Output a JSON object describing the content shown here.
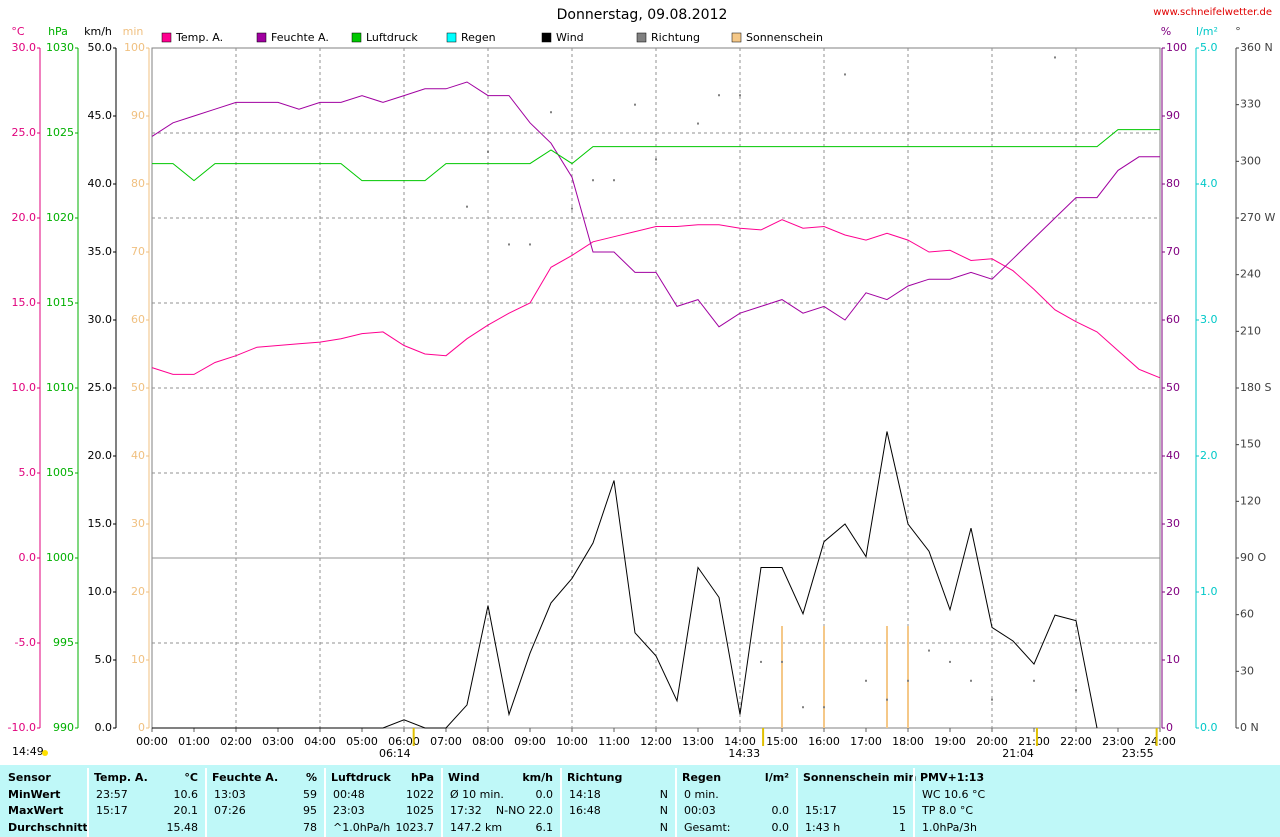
{
  "chart_data": {
    "type": "line",
    "title": "Donnerstag, 09.08.2012",
    "source": "www.schneifelwetter.de",
    "updated": "14:49",
    "x": [
      0,
      0.5,
      1,
      1.5,
      2,
      2.5,
      3,
      3.5,
      4,
      4.5,
      5,
      5.5,
      6,
      6.5,
      7,
      7.5,
      8,
      8.5,
      9,
      9.5,
      10,
      10.5,
      11,
      11.5,
      12,
      12.5,
      13,
      13.5,
      14,
      14.5,
      15,
      15.5,
      16,
      16.5,
      17,
      17.5,
      18,
      18.5,
      19,
      19.5,
      20,
      20.5,
      21,
      21.5,
      22,
      22.5,
      23,
      23.5,
      24
    ],
    "xlim": [
      0,
      24
    ],
    "xticks": [
      {
        "value": 0,
        "label": "00:00"
      },
      {
        "value": 1,
        "label": "01:00"
      },
      {
        "value": 2,
        "label": "02:00"
      },
      {
        "value": 3,
        "label": "03:00"
      },
      {
        "value": 4,
        "label": "04:00"
      },
      {
        "value": 5,
        "label": "05:00"
      },
      {
        "value": 6,
        "label": "06:00"
      },
      {
        "value": 7,
        "label": "07:00"
      },
      {
        "value": 8,
        "label": "08:00"
      },
      {
        "value": 9,
        "label": "09:00"
      },
      {
        "value": 10,
        "label": "10:00"
      },
      {
        "value": 11,
        "label": "11:00"
      },
      {
        "value": 12,
        "label": "12:00"
      },
      {
        "value": 13,
        "label": "13:00"
      },
      {
        "value": 14,
        "label": "14:00"
      },
      {
        "value": 15,
        "label": "15:00"
      },
      {
        "value": 16,
        "label": "16:00"
      },
      {
        "value": 17,
        "label": "17:00"
      },
      {
        "value": 18,
        "label": "18:00"
      },
      {
        "value": 19,
        "label": "19:00"
      },
      {
        "value": 20,
        "label": "20:00"
      },
      {
        "value": 21,
        "label": "21:00"
      },
      {
        "value": 22,
        "label": "22:00"
      },
      {
        "value": 23,
        "label": "23:00"
      },
      {
        "value": 24,
        "label": "24:00"
      }
    ],
    "grid": true,
    "axes": [
      {
        "label": "°C",
        "color": "#e0007c",
        "lim": [
          -10,
          30
        ],
        "ticks": [
          {
            "value": -10,
            "label": "-10.0"
          },
          {
            "value": -5,
            "label": "-5.0"
          },
          {
            "value": 0,
            "label": "0.0"
          },
          {
            "value": 5,
            "label": "5.0"
          },
          {
            "value": 10,
            "label": "10.0"
          },
          {
            "value": 15,
            "label": "15.0"
          },
          {
            "value": 20,
            "label": "20.0"
          },
          {
            "value": 25,
            "label": "25.0"
          },
          {
            "value": 30,
            "label": "30.0"
          }
        ]
      },
      {
        "label": "hPa",
        "color": "#00b000",
        "lim": [
          990,
          1030
        ],
        "ticks": [
          990,
          995,
          1000,
          1005,
          1010,
          1015,
          1020,
          1025,
          1030
        ]
      },
      {
        "label": "km/h",
        "color": "#000000",
        "lim": [
          0,
          50
        ],
        "ticks": [
          {
            "value": 0,
            "label": "0.0"
          },
          {
            "value": 5,
            "label": "5.0"
          },
          {
            "value": 10,
            "label": "10.0"
          },
          {
            "value": 15,
            "label": "15.0"
          },
          {
            "value": 20,
            "label": "20.0"
          },
          {
            "value": 25,
            "label": "25.0"
          },
          {
            "value": 30,
            "label": "30.0"
          },
          {
            "value": 35,
            "label": "35.0"
          },
          {
            "value": 40,
            "label": "40.0"
          },
          {
            "value": 45,
            "label": "45.0"
          },
          {
            "value": 50,
            "label": "50.0"
          }
        ]
      },
      {
        "label": "min",
        "color": "#f0c080",
        "lim": [
          0,
          100
        ],
        "ticks": [
          0,
          10,
          20,
          30,
          40,
          50,
          60,
          70,
          80,
          90,
          100
        ]
      },
      {
        "label": "%",
        "color": "#800080",
        "lim": [
          0,
          100
        ],
        "ticks": [
          0,
          10,
          20,
          30,
          40,
          50,
          60,
          70,
          80,
          90,
          100
        ]
      },
      {
        "label": "l/m²",
        "color": "#00c8c8",
        "lim": [
          0,
          5
        ],
        "ticks": [
          {
            "value": 0,
            "label": "0.0"
          },
          {
            "value": 1,
            "label": "1.0"
          },
          {
            "value": 2,
            "label": "2.0"
          },
          {
            "value": 3,
            "label": "3.0"
          },
          {
            "value": 4,
            "label": "4.0"
          },
          {
            "value": 5,
            "label": "5.0"
          }
        ]
      },
      {
        "label": "°",
        "color": "#404040",
        "lim": [
          0,
          360
        ],
        "ticks": [
          {
            "value": 0,
            "label": "0 N"
          },
          30,
          60,
          {
            "value": 90,
            "label": "90 O"
          },
          120,
          150,
          {
            "value": 180,
            "label": "180 S"
          },
          210,
          240,
          {
            "value": 270,
            "label": "270 W"
          },
          300,
          330,
          {
            "value": 360,
            "label": "360 N"
          }
        ]
      }
    ],
    "series": [
      {
        "name": "Temp. A.",
        "type": "line",
        "axis": "°C",
        "color": "#ff0090",
        "values": [
          11.2,
          10.8,
          10.8,
          11.5,
          11.9,
          12.4,
          12.5,
          12.6,
          12.7,
          12.9,
          13.2,
          13.3,
          12.5,
          12.0,
          11.9,
          12.9,
          13.7,
          14.4,
          15.0,
          17.1,
          17.8,
          18.6,
          18.9,
          19.2,
          19.5,
          19.5,
          19.6,
          19.6,
          19.4,
          19.3,
          19.9,
          19.4,
          19.5,
          19.0,
          18.7,
          19.1,
          18.7,
          18.0,
          18.1,
          17.5,
          17.6,
          16.9,
          15.8,
          14.6,
          13.9,
          13.3,
          12.2,
          11.1,
          10.6
        ]
      },
      {
        "name": "Feuchte A.",
        "type": "line",
        "axis": "%",
        "color": "#a000a0",
        "values": [
          87,
          89,
          90,
          91,
          92,
          92,
          92,
          91,
          92,
          92,
          93,
          92,
          93,
          94,
          94,
          95,
          93,
          93,
          89,
          86,
          81,
          70,
          70,
          67,
          67,
          62,
          63,
          59,
          61,
          62,
          63,
          61,
          62,
          60,
          64,
          63,
          65,
          66,
          66,
          67,
          66,
          69,
          72,
          75,
          78,
          78,
          82,
          84,
          84
        ]
      },
      {
        "name": "Luftdruck",
        "type": "line",
        "axis": "hPa",
        "color": "#00c800",
        "values": [
          1023.2,
          1023.2,
          1022.2,
          1023.2,
          1023.2,
          1023.2,
          1023.2,
          1023.2,
          1023.2,
          1023.2,
          1022.2,
          1022.2,
          1022.2,
          1022.2,
          1023.2,
          1023.2,
          1023.2,
          1023.2,
          1023.2,
          1024.0,
          1023.2,
          1024.2,
          1024.2,
          1024.2,
          1024.2,
          1024.2,
          1024.2,
          1024.2,
          1024.2,
          1024.2,
          1024.2,
          1024.2,
          1024.2,
          1024.2,
          1024.2,
          1024.2,
          1024.2,
          1024.2,
          1024.2,
          1024.2,
          1024.2,
          1024.2,
          1024.2,
          1024.2,
          1024.2,
          1024.2,
          1025.2,
          1025.2,
          1025.2
        ]
      },
      {
        "name": "Regen",
        "type": "line",
        "axis": "l/m²",
        "color": "#00ffff",
        "values": [
          null,
          null,
          null,
          null,
          null,
          null,
          null,
          null,
          null,
          null,
          null,
          null,
          null,
          null,
          null,
          null,
          null,
          null,
          null,
          null,
          null,
          null,
          null,
          null,
          null,
          null,
          null,
          null,
          null,
          null,
          null,
          null,
          null,
          null,
          null,
          null,
          null,
          null,
          null,
          null,
          null,
          null,
          null,
          null,
          null,
          null,
          null,
          null,
          null
        ]
      },
      {
        "name": "Wind",
        "type": "line",
        "axis": "km/h",
        "color": "#000000",
        "values": [
          0,
          0,
          0,
          0,
          0,
          0,
          0,
          0,
          0,
          0,
          0,
          0,
          0.6,
          0,
          0,
          1.7,
          9.0,
          1.0,
          5.5,
          9.2,
          11.0,
          13.6,
          18.2,
          7.0,
          5.3,
          2.0,
          11.8,
          9.6,
          1.0,
          11.8,
          11.8,
          8.4,
          13.7,
          15.0,
          12.6,
          21.8,
          15.0,
          13.0,
          8.7,
          14.7,
          7.4,
          6.4,
          4.7,
          8.3,
          7.9,
          0,
          null,
          null,
          null
        ]
      },
      {
        "name": "Richtung",
        "type": "scatter",
        "axis": "°",
        "color": "#808080",
        "values": [
          null,
          null,
          null,
          null,
          null,
          null,
          null,
          null,
          null,
          null,
          null,
          null,
          null,
          null,
          null,
          276,
          305,
          256,
          256,
          326,
          275,
          290,
          290,
          330,
          301,
          null,
          320,
          335,
          335,
          35,
          35,
          11,
          11,
          346,
          25,
          15,
          25,
          41,
          35,
          25,
          15,
          null,
          25,
          355,
          20,
          null,
          null,
          null,
          null
        ]
      },
      {
        "name": "Sonnenschein",
        "type": "bar",
        "axis": "min",
        "color": "#f5c888",
        "values": [
          null,
          null,
          null,
          null,
          null,
          null,
          null,
          null,
          null,
          null,
          null,
          null,
          null,
          null,
          null,
          null,
          null,
          null,
          null,
          null,
          null,
          null,
          null,
          null,
          null,
          null,
          null,
          null,
          null,
          null,
          15,
          null,
          15,
          null,
          null,
          15,
          15,
          null,
          null,
          null,
          null,
          null,
          null,
          null,
          null,
          null,
          null,
          null,
          null
        ]
      }
    ],
    "annotations": [
      {
        "x": 6.23,
        "text": "06:14"
      },
      {
        "x": 14.55,
        "text": "14:33"
      },
      {
        "x": 21.07,
        "text": "21:04"
      },
      {
        "x": 23.92,
        "text": "23:55"
      }
    ]
  },
  "summary": {
    "labels": [
      "Sensor",
      "MinWert",
      "MaxWert",
      "Durchschnitt"
    ],
    "groups": [
      {
        "title": "Temp. A.",
        "unit": "°C",
        "rows": [
          {
            "left": "23:57",
            "right": "10.6"
          },
          {
            "left": "15:17",
            "right": "20.1"
          },
          {
            "right": "15.48"
          }
        ]
      },
      {
        "title": "Feuchte A.",
        "unit": "%",
        "rows": [
          {
            "left": "13:03",
            "right": "59"
          },
          {
            "left": "07:26",
            "right": "95"
          },
          {
            "right": "78"
          }
        ]
      },
      {
        "title": "Luftdruck",
        "unit": "hPa",
        "rows": [
          {
            "left": "00:48",
            "right": "1022"
          },
          {
            "left": "23:03",
            "right": "1025"
          },
          {
            "left": "^1.0hPa/h",
            "right": "1023.7"
          }
        ]
      },
      {
        "title": "Wind",
        "unit": "km/h",
        "rows": [
          {
            "left": "Ø 10 min.",
            "right": "0.0"
          },
          {
            "left": "17:32",
            "right": "N-NO 22.0"
          },
          {
            "left": "147.2 km",
            "right": "6.1"
          }
        ]
      },
      {
        "title": "Richtung",
        "rows": [
          {
            "left": "14:18",
            "right": "N"
          },
          {
            "left": "16:48",
            "right": "N"
          },
          {
            "right": "N"
          }
        ]
      },
      {
        "title": "Regen",
        "unit": "l/m²",
        "rows": [
          {
            "left": "0 min."
          },
          {
            "left": "00:03",
            "right": "0.0"
          },
          {
            "left": "Gesamt:",
            "right": "0.0"
          }
        ]
      },
      {
        "title": "Sonnenschein min",
        "rows": [
          {},
          {
            "left": "15:17",
            "right": "15"
          },
          {
            "left": "1:43 h",
            "right": "1"
          }
        ]
      },
      {
        "title": "PMV+1:13",
        "rows": [
          {
            "left": "WC 10.6 °C"
          },
          {
            "left": "TP 8.0 °C"
          },
          {
            "left": "1.0hPa/3h"
          }
        ]
      }
    ]
  }
}
